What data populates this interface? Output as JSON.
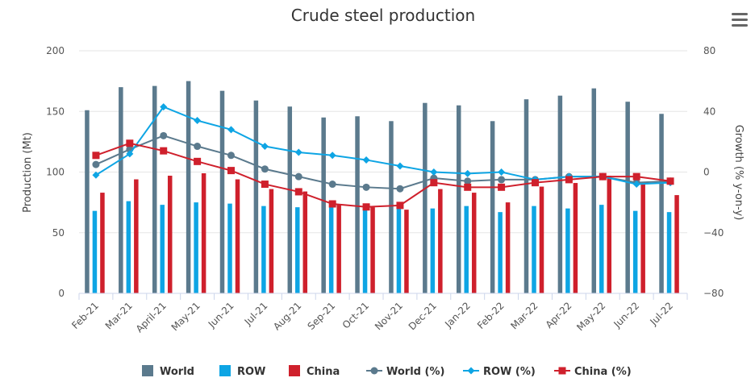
{
  "menu": {
    "icon": "hamburger-menu-icon"
  },
  "chart_data": {
    "type": "bar",
    "title": "Crude steel production",
    "categories": [
      "Feb-21",
      "Mar-21",
      "April-21",
      "May-21",
      "Jun-21",
      "Jul-21",
      "Aug-21",
      "Sep-21",
      "Oct-21",
      "Nov-21",
      "Dec-21",
      "Jan-22",
      "Feb-22",
      "Mar-22",
      "Apr-22",
      "May-22",
      "Jun-22",
      "Jul-22"
    ],
    "y_left": {
      "label": "Production (Mt)",
      "min": 0,
      "max": 200,
      "ticks": [
        0,
        50,
        100,
        150,
        200
      ]
    },
    "y_right": {
      "label": "Growth (% y-on-y)",
      "min": -80,
      "max": 80,
      "ticks": [
        -80,
        -40,
        0,
        40,
        80
      ]
    },
    "grid": true,
    "legend_position": "bottom",
    "bar_series": [
      {
        "name": "World",
        "color": "#5b7a8d",
        "values": [
          151,
          170,
          171,
          175,
          167,
          159,
          154,
          145,
          146,
          142,
          157,
          155,
          142,
          160,
          163,
          169,
          158,
          148
        ]
      },
      {
        "name": "ROW",
        "color": "#0ea5e4",
        "values": [
          68,
          76,
          73,
          75,
          74,
          72,
          71,
          71,
          71,
          72,
          70,
          72,
          67,
          72,
          70,
          73,
          68,
          67
        ]
      },
      {
        "name": "China",
        "color": "#cf202c",
        "values": [
          83,
          94,
          97,
          99,
          94,
          86,
          84,
          73,
          71,
          69,
          86,
          83,
          75,
          88,
          91,
          97,
          91,
          81
        ]
      }
    ],
    "line_series": [
      {
        "name": "World (%)",
        "color": "#5b7a8d",
        "marker": "circle",
        "values": [
          5,
          15,
          24,
          17,
          11,
          2,
          -3,
          -8,
          -10,
          -11,
          -4,
          -6,
          -5,
          -5,
          -3,
          -3,
          -7,
          -6
        ]
      },
      {
        "name": "ROW (%)",
        "color": "#0ea5e4",
        "marker": "diamond",
        "values": [
          -2,
          12,
          43,
          34,
          28,
          17,
          13,
          11,
          8,
          4,
          0,
          -1,
          0,
          -5,
          -3,
          -3,
          -8,
          -7
        ]
      },
      {
        "name": "China (%)",
        "color": "#cf202c",
        "marker": "square",
        "values": [
          11,
          19,
          14,
          7,
          1,
          -8,
          -13,
          -21,
          -23,
          -22,
          -7,
          -10,
          -10,
          -7,
          -5,
          -3,
          -3,
          -6
        ]
      }
    ]
  }
}
